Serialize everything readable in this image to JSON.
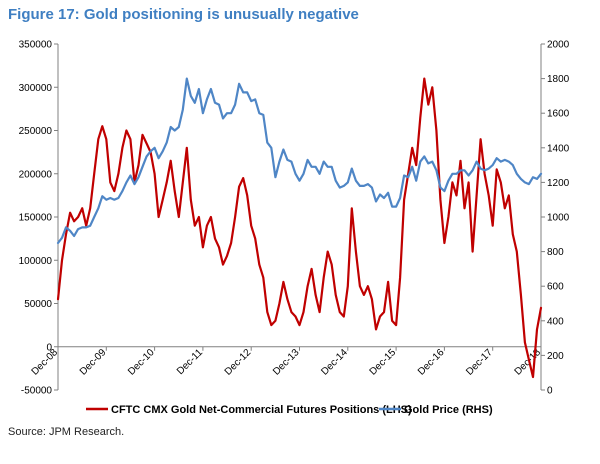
{
  "figure": {
    "title": "Figure 17: Gold positioning is unusually negative",
    "source": "Source: JPM Research."
  },
  "chart_data": {
    "type": "line",
    "title": "Figure 17: Gold positioning is unusually negative",
    "x_tick_labels": [
      "Dec-08",
      "Dec-09",
      "Dec-10",
      "Dec-11",
      "Dec-12",
      "Dec-13",
      "Dec-14",
      "Dec-15",
      "Dec-16",
      "Dec-17",
      "Dec-18"
    ],
    "y_left": {
      "range": [
        -50000,
        350000
      ],
      "ticks": [
        -50000,
        0,
        50000,
        100000,
        150000,
        200000,
        250000,
        300000,
        350000
      ]
    },
    "y_right": {
      "range": [
        0,
        2000
      ],
      "ticks": [
        0,
        200,
        400,
        600,
        800,
        1000,
        1200,
        1400,
        1600,
        1800,
        2000
      ]
    },
    "legend_position": "bottom",
    "grid": false,
    "series": [
      {
        "name": "CFTC CMX Gold Net-Commercial Futures Positions (LHS)",
        "axis": "left",
        "color": "#c00000",
        "points": [
          [
            "2008-12",
            55000
          ],
          [
            "2009-01",
            100000
          ],
          [
            "2009-02",
            130000
          ],
          [
            "2009-03",
            155000
          ],
          [
            "2009-04",
            145000
          ],
          [
            "2009-05",
            150000
          ],
          [
            "2009-06",
            160000
          ],
          [
            "2009-07",
            140000
          ],
          [
            "2009-08",
            160000
          ],
          [
            "2009-09",
            200000
          ],
          [
            "2009-10",
            240000
          ],
          [
            "2009-11",
            255000
          ],
          [
            "2009-12",
            240000
          ],
          [
            "2010-01",
            190000
          ],
          [
            "2010-02",
            180000
          ],
          [
            "2010-03",
            200000
          ],
          [
            "2010-04",
            230000
          ],
          [
            "2010-05",
            250000
          ],
          [
            "2010-06",
            240000
          ],
          [
            "2010-07",
            190000
          ],
          [
            "2010-08",
            210000
          ],
          [
            "2010-09",
            245000
          ],
          [
            "2010-10",
            235000
          ],
          [
            "2010-11",
            225000
          ],
          [
            "2010-12",
            200000
          ],
          [
            "2011-01",
            150000
          ],
          [
            "2011-02",
            170000
          ],
          [
            "2011-03",
            190000
          ],
          [
            "2011-04",
            215000
          ],
          [
            "2011-05",
            180000
          ],
          [
            "2011-06",
            150000
          ],
          [
            "2011-07",
            190000
          ],
          [
            "2011-08",
            230000
          ],
          [
            "2011-09",
            170000
          ],
          [
            "2011-10",
            140000
          ],
          [
            "2011-11",
            150000
          ],
          [
            "2011-12",
            115000
          ],
          [
            "2012-01",
            140000
          ],
          [
            "2012-02",
            150000
          ],
          [
            "2012-03",
            125000
          ],
          [
            "2012-04",
            115000
          ],
          [
            "2012-05",
            95000
          ],
          [
            "2012-06",
            105000
          ],
          [
            "2012-07",
            120000
          ],
          [
            "2012-08",
            150000
          ],
          [
            "2012-09",
            185000
          ],
          [
            "2012-10",
            195000
          ],
          [
            "2012-11",
            175000
          ],
          [
            "2012-12",
            140000
          ],
          [
            "2013-01",
            125000
          ],
          [
            "2013-02",
            95000
          ],
          [
            "2013-03",
            80000
          ],
          [
            "2013-04",
            40000
          ],
          [
            "2013-05",
            25000
          ],
          [
            "2013-06",
            30000
          ],
          [
            "2013-07",
            50000
          ],
          [
            "2013-08",
            75000
          ],
          [
            "2013-09",
            55000
          ],
          [
            "2013-10",
            40000
          ],
          [
            "2013-11",
            35000
          ],
          [
            "2013-12",
            25000
          ],
          [
            "2014-01",
            40000
          ],
          [
            "2014-02",
            70000
          ],
          [
            "2014-03",
            90000
          ],
          [
            "2014-04",
            60000
          ],
          [
            "2014-05",
            40000
          ],
          [
            "2014-06",
            80000
          ],
          [
            "2014-07",
            110000
          ],
          [
            "2014-08",
            95000
          ],
          [
            "2014-09",
            60000
          ],
          [
            "2014-10",
            40000
          ],
          [
            "2014-11",
            35000
          ],
          [
            "2014-12",
            70000
          ],
          [
            "2015-01",
            160000
          ],
          [
            "2015-02",
            110000
          ],
          [
            "2015-03",
            70000
          ],
          [
            "2015-04",
            60000
          ],
          [
            "2015-05",
            70000
          ],
          [
            "2015-06",
            55000
          ],
          [
            "2015-07",
            20000
          ],
          [
            "2015-08",
            35000
          ],
          [
            "2015-09",
            40000
          ],
          [
            "2015-10",
            75000
          ],
          [
            "2015-11",
            30000
          ],
          [
            "2015-12",
            25000
          ],
          [
            "2016-01",
            80000
          ],
          [
            "2016-02",
            170000
          ],
          [
            "2016-03",
            200000
          ],
          [
            "2016-04",
            230000
          ],
          [
            "2016-05",
            210000
          ],
          [
            "2016-06",
            265000
          ],
          [
            "2016-07",
            310000
          ],
          [
            "2016-08",
            280000
          ],
          [
            "2016-09",
            300000
          ],
          [
            "2016-10",
            250000
          ],
          [
            "2016-11",
            170000
          ],
          [
            "2016-12",
            120000
          ],
          [
            "2017-01",
            150000
          ],
          [
            "2017-02",
            190000
          ],
          [
            "2017-03",
            175000
          ],
          [
            "2017-04",
            215000
          ],
          [
            "2017-05",
            160000
          ],
          [
            "2017-06",
            190000
          ],
          [
            "2017-07",
            110000
          ],
          [
            "2017-08",
            175000
          ],
          [
            "2017-09",
            240000
          ],
          [
            "2017-10",
            200000
          ],
          [
            "2017-11",
            175000
          ],
          [
            "2017-12",
            140000
          ],
          [
            "2018-01",
            205000
          ],
          [
            "2018-02",
            190000
          ],
          [
            "2018-03",
            160000
          ],
          [
            "2018-04",
            175000
          ],
          [
            "2018-05",
            130000
          ],
          [
            "2018-06",
            110000
          ],
          [
            "2018-07",
            60000
          ],
          [
            "2018-08",
            5000
          ],
          [
            "2018-09",
            -15000
          ],
          [
            "2018-10",
            -35000
          ],
          [
            "2018-11",
            20000
          ],
          [
            "2018-12",
            45000
          ]
        ]
      },
      {
        "name": "Gold Price (RHS)",
        "axis": "right",
        "color": "#4f86c6",
        "points": [
          [
            "2008-12",
            850
          ],
          [
            "2009-01",
            880
          ],
          [
            "2009-02",
            940
          ],
          [
            "2009-03",
            920
          ],
          [
            "2009-04",
            890
          ],
          [
            "2009-05",
            930
          ],
          [
            "2009-06",
            940
          ],
          [
            "2009-07",
            940
          ],
          [
            "2009-08",
            950
          ],
          [
            "2009-09",
            1000
          ],
          [
            "2009-10",
            1050
          ],
          [
            "2009-11",
            1120
          ],
          [
            "2009-12",
            1100
          ],
          [
            "2010-01",
            1110
          ],
          [
            "2010-02",
            1100
          ],
          [
            "2010-03",
            1110
          ],
          [
            "2010-04",
            1150
          ],
          [
            "2010-05",
            1200
          ],
          [
            "2010-06",
            1240
          ],
          [
            "2010-07",
            1190
          ],
          [
            "2010-08",
            1230
          ],
          [
            "2010-09",
            1290
          ],
          [
            "2010-10",
            1350
          ],
          [
            "2010-11",
            1380
          ],
          [
            "2010-12",
            1400
          ],
          [
            "2011-01",
            1340
          ],
          [
            "2011-02",
            1380
          ],
          [
            "2011-03",
            1430
          ],
          [
            "2011-04",
            1520
          ],
          [
            "2011-05",
            1500
          ],
          [
            "2011-06",
            1520
          ],
          [
            "2011-07",
            1620
          ],
          [
            "2011-08",
            1800
          ],
          [
            "2011-09",
            1700
          ],
          [
            "2011-10",
            1660
          ],
          [
            "2011-11",
            1740
          ],
          [
            "2011-12",
            1600
          ],
          [
            "2012-01",
            1680
          ],
          [
            "2012-02",
            1740
          ],
          [
            "2012-03",
            1660
          ],
          [
            "2012-04",
            1650
          ],
          [
            "2012-05",
            1570
          ],
          [
            "2012-06",
            1600
          ],
          [
            "2012-07",
            1600
          ],
          [
            "2012-08",
            1650
          ],
          [
            "2012-09",
            1770
          ],
          [
            "2012-10",
            1720
          ],
          [
            "2012-11",
            1720
          ],
          [
            "2012-12",
            1670
          ],
          [
            "2013-01",
            1680
          ],
          [
            "2013-02",
            1600
          ],
          [
            "2013-03",
            1590
          ],
          [
            "2013-04",
            1430
          ],
          [
            "2013-05",
            1400
          ],
          [
            "2013-06",
            1230
          ],
          [
            "2013-07",
            1320
          ],
          [
            "2013-08",
            1390
          ],
          [
            "2013-09",
            1330
          ],
          [
            "2013-10",
            1320
          ],
          [
            "2013-11",
            1250
          ],
          [
            "2013-12",
            1210
          ],
          [
            "2014-01",
            1250
          ],
          [
            "2014-02",
            1330
          ],
          [
            "2014-03",
            1290
          ],
          [
            "2014-04",
            1290
          ],
          [
            "2014-05",
            1250
          ],
          [
            "2014-06",
            1320
          ],
          [
            "2014-07",
            1290
          ],
          [
            "2014-08",
            1290
          ],
          [
            "2014-09",
            1210
          ],
          [
            "2014-10",
            1170
          ],
          [
            "2014-11",
            1180
          ],
          [
            "2014-12",
            1200
          ],
          [
            "2015-01",
            1280
          ],
          [
            "2015-02",
            1210
          ],
          [
            "2015-03",
            1180
          ],
          [
            "2015-04",
            1180
          ],
          [
            "2015-05",
            1190
          ],
          [
            "2015-06",
            1170
          ],
          [
            "2015-07",
            1090
          ],
          [
            "2015-08",
            1130
          ],
          [
            "2015-09",
            1110
          ],
          [
            "2015-10",
            1140
          ],
          [
            "2015-11",
            1060
          ],
          [
            "2015-12",
            1060
          ],
          [
            "2016-01",
            1110
          ],
          [
            "2016-02",
            1240
          ],
          [
            "2016-03",
            1230
          ],
          [
            "2016-04",
            1290
          ],
          [
            "2016-05",
            1210
          ],
          [
            "2016-06",
            1320
          ],
          [
            "2016-07",
            1350
          ],
          [
            "2016-08",
            1310
          ],
          [
            "2016-09",
            1320
          ],
          [
            "2016-10",
            1270
          ],
          [
            "2016-11",
            1170
          ],
          [
            "2016-12",
            1150
          ],
          [
            "2017-01",
            1210
          ],
          [
            "2017-02",
            1250
          ],
          [
            "2017-03",
            1250
          ],
          [
            "2017-04",
            1270
          ],
          [
            "2017-05",
            1270
          ],
          [
            "2017-06",
            1240
          ],
          [
            "2017-07",
            1270
          ],
          [
            "2017-08",
            1320
          ],
          [
            "2017-09",
            1280
          ],
          [
            "2017-10",
            1270
          ],
          [
            "2017-11",
            1280
          ],
          [
            "2017-12",
            1300
          ],
          [
            "2018-01",
            1340
          ],
          [
            "2018-02",
            1320
          ],
          [
            "2018-03",
            1330
          ],
          [
            "2018-04",
            1320
          ],
          [
            "2018-05",
            1300
          ],
          [
            "2018-06",
            1250
          ],
          [
            "2018-07",
            1220
          ],
          [
            "2018-08",
            1200
          ],
          [
            "2018-09",
            1190
          ],
          [
            "2018-10",
            1230
          ],
          [
            "2018-11",
            1220
          ],
          [
            "2018-12",
            1250
          ]
        ]
      }
    ]
  }
}
